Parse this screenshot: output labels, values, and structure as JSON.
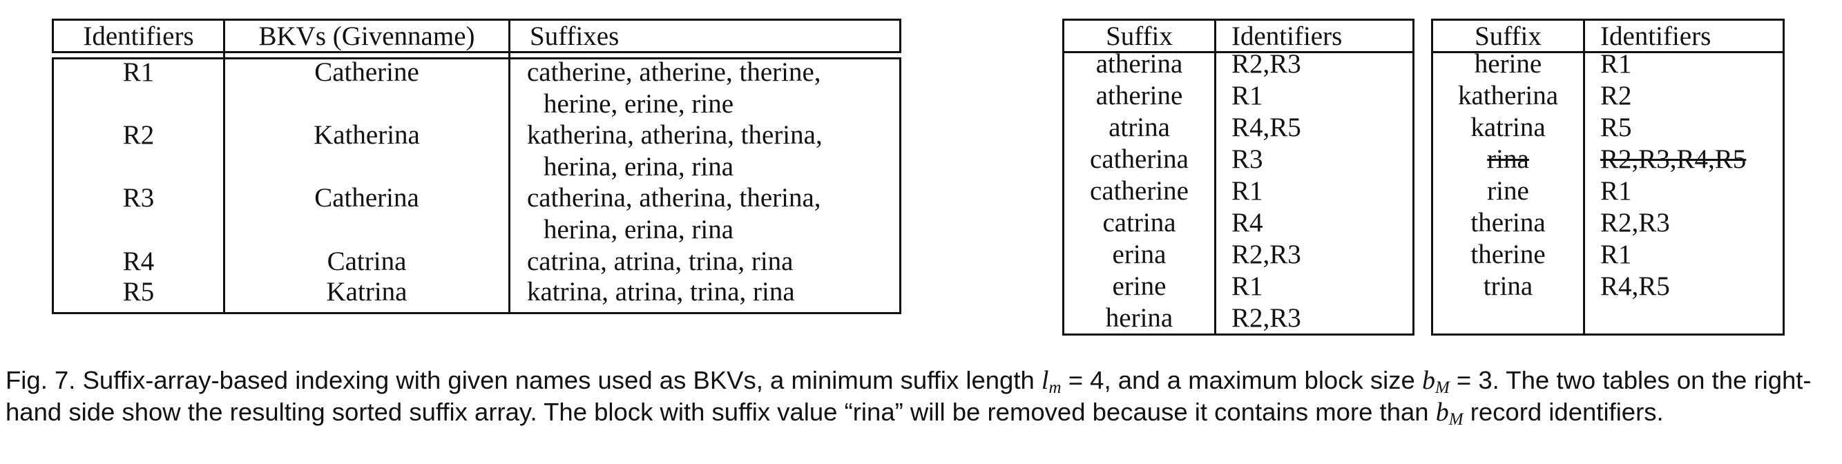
{
  "table_bkv": {
    "headers": [
      "Identifiers",
      "BKVs (Givenname)",
      "Suffixes"
    ],
    "rows": [
      {
        "id": "R1",
        "bkv": "Catherine",
        "suffixes_line1": "catherine, atherine, therine,",
        "suffixes_line2": "herine, erine, rine"
      },
      {
        "id": "R2",
        "bkv": "Katherina",
        "suffixes_line1": "katherina, atherina, therina,",
        "suffixes_line2": "herina, erina, rina"
      },
      {
        "id": "R3",
        "bkv": "Catherina",
        "suffixes_line1": "catherina, atherina, therina,",
        "suffixes_line2": "herina, erina, rina"
      },
      {
        "id": "R4",
        "bkv": "Catrina",
        "suffixes_line1": "catrina, atrina, trina, rina",
        "suffixes_line2": ""
      },
      {
        "id": "R5",
        "bkv": "Katrina",
        "suffixes_line1": "katrina, atrina, trina, rina",
        "suffixes_line2": ""
      }
    ]
  },
  "suffix_table_a": {
    "headers": [
      "Suffix",
      "Identifiers"
    ],
    "rows": [
      {
        "suffix": "atherina",
        "ids": "R2,R3"
      },
      {
        "suffix": "atherine",
        "ids": "R1"
      },
      {
        "suffix": "atrina",
        "ids": "R4,R5"
      },
      {
        "suffix": "catherina",
        "ids": "R3"
      },
      {
        "suffix": "catherine",
        "ids": "R1"
      },
      {
        "suffix": "catrina",
        "ids": "R4"
      },
      {
        "suffix": "erina",
        "ids": "R2,R3"
      },
      {
        "suffix": "erine",
        "ids": "R1"
      },
      {
        "suffix": "herina",
        "ids": "R2,R3"
      }
    ]
  },
  "suffix_table_b": {
    "headers": [
      "Suffix",
      "Identifiers"
    ],
    "rows": [
      {
        "suffix": "herine",
        "ids": "R1",
        "struck": false
      },
      {
        "suffix": "katherina",
        "ids": "R2",
        "struck": false
      },
      {
        "suffix": "katrina",
        "ids": "R5",
        "struck": false
      },
      {
        "suffix": "rina",
        "ids": "R2,R3,R4,R5",
        "struck": true
      },
      {
        "suffix": "rine",
        "ids": "R1",
        "struck": false
      },
      {
        "suffix": "therina",
        "ids": "R2,R3",
        "struck": false
      },
      {
        "suffix": "therine",
        "ids": "R1",
        "struck": false
      },
      {
        "suffix": "trina",
        "ids": "R4,R5",
        "struck": false
      }
    ]
  },
  "caption": {
    "part1": "Fig. 7. Suffix-array-based indexing with given names used as BKVs, a minimum suffix length ",
    "math1_base": "l",
    "math1_sub": "m",
    "math1_rest": " = 4",
    "part2": ", and a maximum block size ",
    "math2_base": "b",
    "math2_sub": "M",
    "math2_rest": " = 3",
    "part3": ". The two tables on the right-hand side show the resulting sorted suffix array. The block with suffix value “rina” will be removed because it contains more than ",
    "math3_base": "b",
    "math3_sub": "M",
    "part4": " record identifiers."
  }
}
